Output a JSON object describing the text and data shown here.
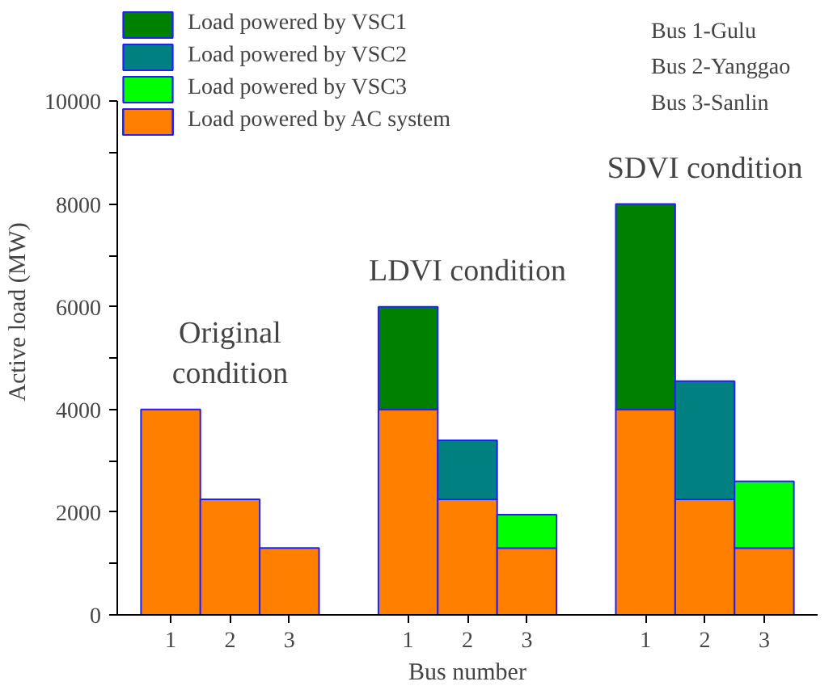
{
  "chart_data": {
    "type": "bar",
    "stacked": true,
    "xlabel": "Bus number",
    "ylabel": "Active load (MW)",
    "categories": [
      "1",
      "2",
      "3",
      null,
      "1",
      "2",
      "3",
      null,
      "1",
      "2",
      "3"
    ],
    "series": [
      {
        "name": "Load powered by AC system",
        "color": "#ff8000",
        "values": [
          4000,
          2250,
          1300,
          null,
          4000,
          2250,
          1300,
          null,
          4000,
          2250,
          1300
        ]
      },
      {
        "name": "Load powered by VSC1",
        "color": "#008000",
        "values": [
          null,
          null,
          null,
          null,
          2000,
          null,
          null,
          null,
          4000,
          null,
          null
        ]
      },
      {
        "name": "Load powered by VSC2",
        "color": "#008080",
        "values": [
          null,
          null,
          null,
          null,
          null,
          1150,
          null,
          null,
          null,
          2300,
          null
        ]
      },
      {
        "name": "Load powered by VSC3",
        "color": "#00ff00",
        "values": [
          null,
          null,
          null,
          null,
          null,
          null,
          650,
          null,
          null,
          null,
          1300
        ]
      }
    ],
    "ylim": [
      0,
      10000
    ],
    "yticks": [
      0,
      {
        "value": 1000,
        "label": null
      },
      2000,
      {
        "value": 3000,
        "label": null
      },
      4000,
      {
        "value": 5000,
        "label": null
      },
      6000,
      {
        "value": 7000,
        "label": null
      },
      8000,
      {
        "value": 9000,
        "label": null
      },
      10000
    ],
    "grid": false,
    "legend": "top left",
    "annotations": [
      "Original condition",
      "LDVI condition",
      "SDVI condition",
      "Bus 1-Gulu",
      "Bus 2-Yanggao",
      "Bus 3-Sanlin"
    ]
  }
}
